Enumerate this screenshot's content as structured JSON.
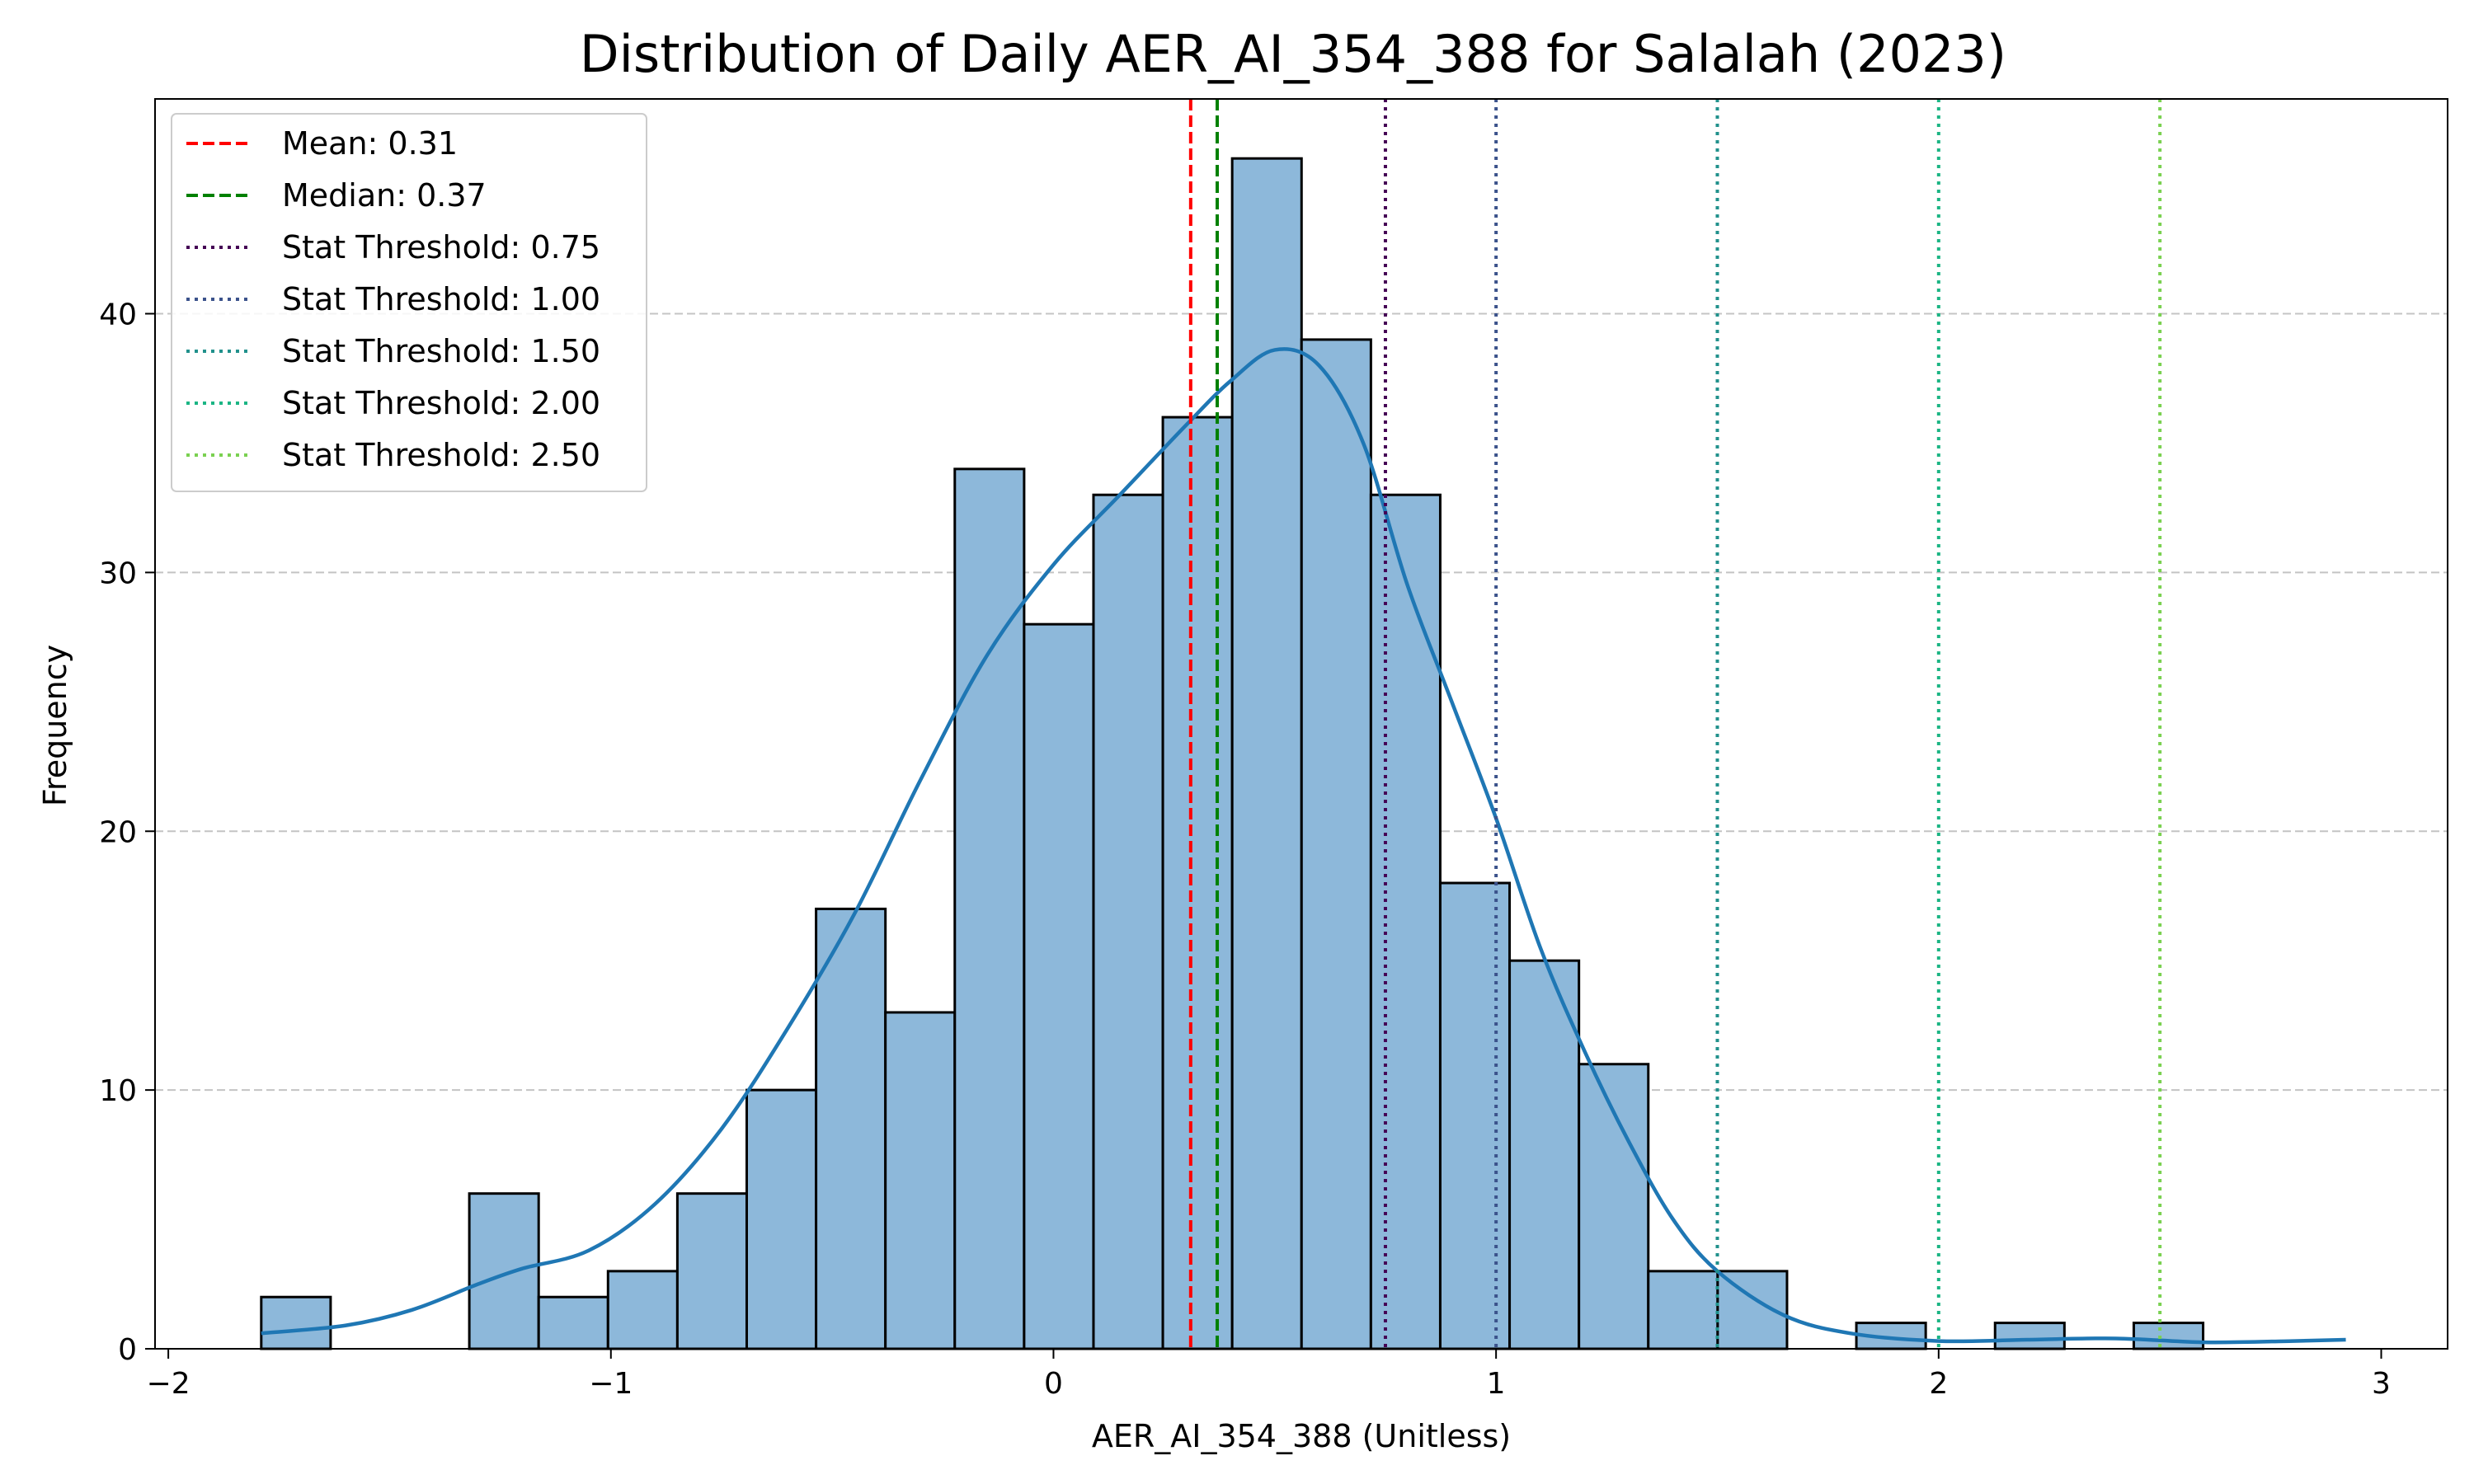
{
  "chart_data": {
    "type": "bar",
    "subtype": "histogram",
    "title": "Distribution of Daily AER_AI_354_388 for Salalah (2023)",
    "xlabel": "AER_AI_354_388 (Unitless)",
    "ylabel": "Frequency",
    "xlim": [
      -2.03,
      3.15
    ],
    "ylim": [
      0,
      48.3
    ],
    "xticks": [
      -2,
      -1,
      0,
      1,
      2,
      3
    ],
    "xtick_labels": [
      "−2",
      "−1",
      "0",
      "1",
      "2",
      "3"
    ],
    "yticks": [
      0,
      10,
      20,
      30,
      40
    ],
    "ytick_labels": [
      "0",
      "10",
      "20",
      "30",
      "40"
    ],
    "grid": "y-dashed",
    "bar_color": "#8db8da",
    "kde_color": "#1f77b4",
    "bins": {
      "start": -1.79,
      "width": 0.1567,
      "counts": [
        2,
        0,
        0,
        6,
        2,
        3,
        6,
        10,
        17,
        13,
        34,
        28,
        33,
        36,
        46,
        39,
        33,
        18,
        15,
        11,
        3,
        3,
        0,
        1,
        0,
        1,
        0,
        1,
        0,
        0
      ]
    },
    "kde": {
      "x": [
        -1.79,
        -1.6,
        -1.45,
        -1.3,
        -1.2,
        -1.05,
        -0.9,
        -0.75,
        -0.6,
        -0.45,
        -0.3,
        -0.15,
        0.0,
        0.15,
        0.3,
        0.4,
        0.5,
        0.6,
        0.7,
        0.8,
        0.9,
        1.0,
        1.1,
        1.2,
        1.3,
        1.4,
        1.5,
        1.65,
        1.8,
        2.0,
        2.2,
        2.4,
        2.6,
        2.8,
        2.92
      ],
      "y": [
        0.6,
        0.9,
        1.5,
        2.5,
        3.1,
        3.8,
        5.6,
        8.5,
        12.4,
        16.8,
        22.0,
        26.8,
        30.3,
        33.0,
        35.7,
        37.4,
        38.6,
        38.0,
        35.0,
        29.5,
        25.0,
        20.5,
        15.5,
        11.5,
        8.0,
        5.0,
        3.0,
        1.3,
        0.6,
        0.3,
        0.35,
        0.4,
        0.25,
        0.3,
        0.35
      ]
    },
    "reference_lines": [
      {
        "label": "Mean: 0.31",
        "value": 0.31,
        "color": "#ff0000",
        "style": "dashed"
      },
      {
        "label": "Median: 0.37",
        "value": 0.37,
        "color": "#008000",
        "style": "dashed"
      },
      {
        "label": "Stat Threshold: 0.75",
        "value": 0.75,
        "color": "#440154",
        "style": "dotted"
      },
      {
        "label": "Stat Threshold: 1.00",
        "value": 1.0,
        "color": "#3b528b",
        "style": "dotted"
      },
      {
        "label": "Stat Threshold: 1.50",
        "value": 1.5,
        "color": "#21918c",
        "style": "dotted"
      },
      {
        "label": "Stat Threshold: 2.00",
        "value": 2.0,
        "color": "#1bb584",
        "style": "dotted"
      },
      {
        "label": "Stat Threshold: 2.50",
        "value": 2.5,
        "color": "#7ad151",
        "style": "dotted"
      }
    ],
    "legend_position": "top-left"
  }
}
